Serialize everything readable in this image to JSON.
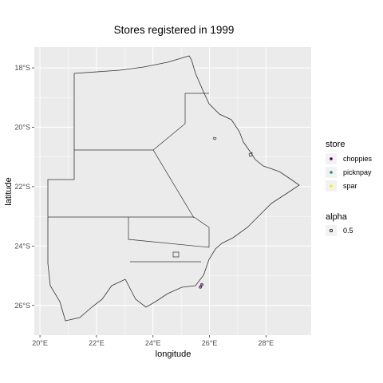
{
  "title": "Stores registered in 1999",
  "x_axis": {
    "label": "longitude",
    "ticks": [
      {
        "value": 20,
        "label": "20°E"
      },
      {
        "value": 22,
        "label": "22°E"
      },
      {
        "value": 24,
        "label": "24°E"
      },
      {
        "value": 26,
        "label": "26°E"
      },
      {
        "value": 28,
        "label": "28°E"
      }
    ]
  },
  "y_axis": {
    "label": "latitude",
    "ticks": [
      {
        "value": -18,
        "label": "18°S"
      },
      {
        "value": -20,
        "label": "20°S"
      },
      {
        "value": -22,
        "label": "22°S"
      },
      {
        "value": -24,
        "label": "24°S"
      },
      {
        "value": -26,
        "label": "26°S"
      }
    ]
  },
  "legend": {
    "store_title": "store",
    "stores": [
      {
        "label": "choppies",
        "color": "#440154"
      },
      {
        "label": "picknpay",
        "color": "#21908c"
      },
      {
        "label": "spar",
        "color": "#fde725"
      }
    ],
    "alpha_title": "alpha",
    "alpha_items": [
      {
        "label": "0.5"
      }
    ]
  },
  "chart_data": {
    "type": "scatter",
    "title": "Stores registered in 1999",
    "xlabel": "longitude",
    "ylabel": "latitude",
    "xlim": [
      19.8,
      29.6
    ],
    "ylim": [
      -27.0,
      -17.3
    ],
    "grid": true,
    "legend_position": "right",
    "series": [
      {
        "name": "choppies",
        "color": "#440154",
        "points": [
          {
            "x": 25.73,
            "y": -25.3
          },
          {
            "x": 25.68,
            "y": -25.38
          }
        ]
      },
      {
        "name": "picknpay",
        "color": "#21908c",
        "points": []
      },
      {
        "name": "spar",
        "color": "#fde725",
        "points": []
      }
    ],
    "alpha": 0.5
  },
  "map": {
    "country_color": "#ebebeb",
    "border_color": "#333333",
    "panel_bg": "#ebebeb",
    "grid_color": "#ffffff"
  }
}
